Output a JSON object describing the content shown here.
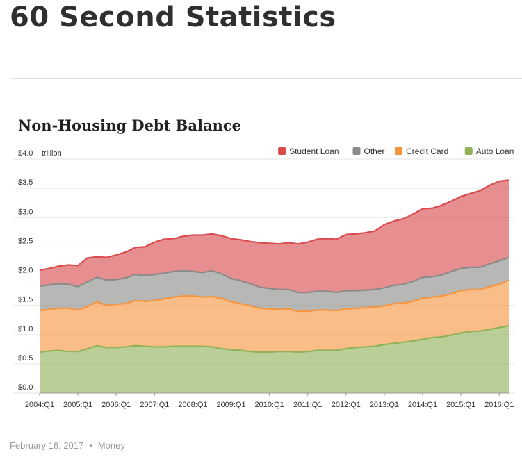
{
  "page": {
    "title": "60 Second Statistics",
    "footer": {
      "date": "February 16, 2017",
      "separator": "•",
      "category": "Money"
    }
  },
  "chart_data": {
    "type": "area",
    "stacked": true,
    "title": "Non-Housing Debt Balance",
    "y_unit_label": "trillion",
    "ylim": [
      0,
      4.0
    ],
    "y_ticks": [
      "$0.0",
      "$0.5",
      "$1.0",
      "$1.5",
      "$2.0",
      "$2.5",
      "$3.0",
      "$3.5",
      "$4.0"
    ],
    "y_tick_values": [
      0,
      0.5,
      1.0,
      1.5,
      2.0,
      2.5,
      3.0,
      3.5,
      4.0
    ],
    "x_ticks": [
      "2004:Q1",
      "2005:Q1",
      "2006:Q1",
      "2007:Q1",
      "2008:Q1",
      "2009:Q1",
      "2010:Q1",
      "2011:Q1",
      "2012:Q1",
      "2013:Q1",
      "2014:Q1",
      "2015:Q1",
      "2016:Q1"
    ],
    "legend_position": "top-right",
    "grid": true,
    "series": [
      {
        "name": "Auto Loan",
        "color": "#8fb258",
        "values": [
          0.7,
          0.72,
          0.73,
          0.71,
          0.71,
          0.76,
          0.81,
          0.78,
          0.78,
          0.79,
          0.81,
          0.8,
          0.79,
          0.79,
          0.8,
          0.8,
          0.8,
          0.8,
          0.79,
          0.76,
          0.74,
          0.73,
          0.71,
          0.7,
          0.7,
          0.71,
          0.71,
          0.7,
          0.71,
          0.73,
          0.73,
          0.73,
          0.76,
          0.78,
          0.79,
          0.8,
          0.83,
          0.85,
          0.87,
          0.89,
          0.92,
          0.95,
          0.96,
          0.99,
          1.03,
          1.05,
          1.06,
          1.09,
          1.12,
          1.15
        ]
      },
      {
        "name": "Credit Card",
        "color": "#f7943e",
        "values": [
          0.71,
          0.71,
          0.72,
          0.74,
          0.71,
          0.72,
          0.75,
          0.72,
          0.74,
          0.74,
          0.77,
          0.77,
          0.79,
          0.82,
          0.84,
          0.86,
          0.86,
          0.84,
          0.86,
          0.86,
          0.82,
          0.8,
          0.78,
          0.75,
          0.74,
          0.72,
          0.73,
          0.7,
          0.69,
          0.69,
          0.69,
          0.68,
          0.68,
          0.67,
          0.67,
          0.67,
          0.66,
          0.68,
          0.67,
          0.68,
          0.7,
          0.69,
          0.7,
          0.71,
          0.72,
          0.72,
          0.71,
          0.73,
          0.74,
          0.78
        ]
      },
      {
        "name": "Other",
        "color": "#8a8a88",
        "values": [
          0.42,
          0.42,
          0.42,
          0.41,
          0.4,
          0.42,
          0.42,
          0.43,
          0.42,
          0.44,
          0.45,
          0.44,
          0.45,
          0.44,
          0.44,
          0.43,
          0.42,
          0.42,
          0.44,
          0.42,
          0.4,
          0.39,
          0.38,
          0.36,
          0.35,
          0.34,
          0.33,
          0.32,
          0.32,
          0.32,
          0.32,
          0.31,
          0.31,
          0.3,
          0.3,
          0.3,
          0.31,
          0.31,
          0.32,
          0.34,
          0.36,
          0.35,
          0.36,
          0.38,
          0.38,
          0.38,
          0.38,
          0.39,
          0.4,
          0.39
        ]
      },
      {
        "name": "Student Loan",
        "color": "#d94b4c",
        "values": [
          0.27,
          0.28,
          0.3,
          0.33,
          0.36,
          0.41,
          0.35,
          0.39,
          0.42,
          0.44,
          0.46,
          0.49,
          0.55,
          0.58,
          0.56,
          0.59,
          0.62,
          0.64,
          0.63,
          0.65,
          0.68,
          0.7,
          0.72,
          0.76,
          0.77,
          0.78,
          0.8,
          0.83,
          0.86,
          0.89,
          0.9,
          0.91,
          0.96,
          0.97,
          0.98,
          1.0,
          1.08,
          1.1,
          1.12,
          1.15,
          1.17,
          1.17,
          1.19,
          1.2,
          1.23,
          1.26,
          1.31,
          1.34,
          1.36,
          1.32
        ]
      }
    ]
  }
}
